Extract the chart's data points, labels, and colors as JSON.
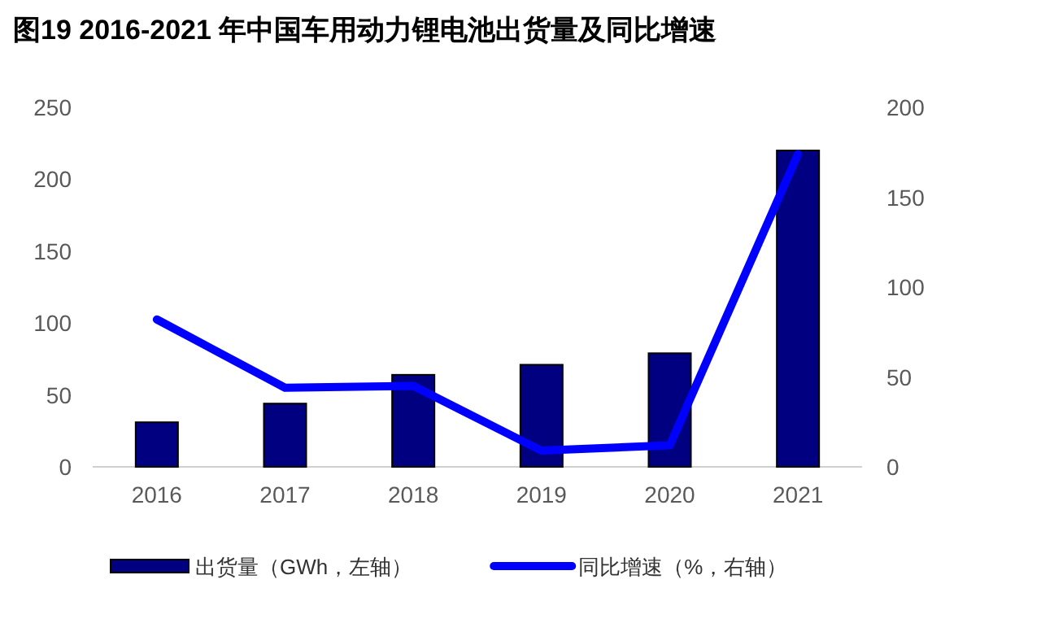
{
  "chart_data": {
    "type": "bar",
    "title": "图19 2016-2021 年中国车用动力锂电池出货量及同比增速",
    "categories": [
      "2016",
      "2017",
      "2018",
      "2019",
      "2020",
      "2021"
    ],
    "series": [
      {
        "name": "出货量（GWh，左轴）",
        "color": "#000080",
        "values": [
          31,
          44,
          64,
          71,
          79,
          220
        ]
      },
      {
        "name": "同比增速（%，右轴）",
        "type": "line",
        "axis": "y2",
        "color": "#0000ff",
        "values": [
          82,
          44,
          45,
          9,
          12,
          174
        ]
      }
    ],
    "ylim": [
      0,
      250
    ],
    "yticks": [
      0,
      50,
      100,
      150,
      200,
      250
    ],
    "y2lim": [
      0,
      200
    ],
    "y2ticks": [
      0,
      50,
      100,
      150,
      200
    ],
    "grid": false,
    "legend": "bottom",
    "marker": "none",
    "line_style": "solid"
  }
}
